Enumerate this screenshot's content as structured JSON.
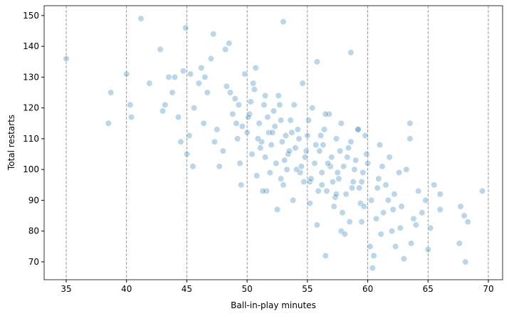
{
  "chart_data": {
    "type": "scatter",
    "x_label": "Ball-in-play minutes",
    "y_label": "Total restarts",
    "color": "#1f77b4",
    "x_grid": true,
    "xlim": [
      33.17,
      71.18
    ],
    "ylim": [
      64.2,
      153.2
    ],
    "xticks": [
      35,
      40,
      45,
      50,
      55,
      60,
      65,
      70
    ],
    "yticks": [
      70,
      80,
      90,
      100,
      110,
      120,
      130,
      140,
      150
    ],
    "x": [
      35,
      38.5,
      38.7,
      40,
      40.3,
      40.4,
      41.2,
      41.9,
      42.8,
      43,
      43.2,
      43.5,
      43.8,
      44,
      44.3,
      44.5,
      44.7,
      44.9,
      45,
      45.2,
      45.3,
      45.5,
      45.6,
      46,
      46.2,
      46.5,
      46.7,
      47,
      47.2,
      47.5,
      47.7,
      48,
      48.2,
      48.5,
      48.8,
      49,
      49.2,
      49.3,
      49.5,
      49.8,
      50,
      50.2,
      50.4,
      50.6,
      50.8,
      51,
      51.2,
      51.4,
      51.6,
      51.8,
      52,
      52.2,
      52.4,
      52.6,
      52.8,
      53,
      53.2,
      53.4,
      53.6,
      53.8,
      54,
      54.2,
      54.4,
      54.6,
      54.8,
      55,
      55.2,
      55.4,
      55.6,
      55.8,
      56,
      56.2,
      56.4,
      56.6,
      56.8,
      57,
      57.2,
      57.4,
      57.6,
      57.8,
      58,
      58.2,
      58.4,
      58.6,
      58.8,
      59,
      59.2,
      59.4,
      59.6,
      59.8,
      60,
      60.2,
      60.4,
      60.5,
      60.8,
      61,
      61.1,
      61.5,
      62,
      62.3,
      62.6,
      63,
      63.5,
      63.5,
      63.6,
      64,
      64.5,
      65,
      65.2,
      65.5,
      66,
      66,
      67.6,
      67.7,
      68,
      68.1,
      68.3,
      69.5,
      59.5,
      59.5,
      59.2,
      58.5,
      57.8,
      56.5,
      56.5,
      55.8,
      53,
      52.5,
      51.3,
      50.7,
      50.3,
      51.5,
      52.3,
      53.3,
      54.3,
      55.3,
      56.3,
      57.3,
      58.3,
      59.3,
      49.6,
      50.9,
      51.9,
      52.9,
      53.9,
      54.9,
      55.9,
      56.9,
      57.9,
      58.9,
      48.3,
      49.1,
      50.1,
      51.1,
      52.1,
      53.1,
      54.1,
      55.1,
      56.1,
      57.1,
      60.3,
      60.9,
      61.3,
      61.8,
      62.2,
      62.8,
      63.2,
      63.8,
      64.2,
      64.8,
      46.4,
      47.3,
      48.6,
      49.4,
      50.5,
      51.7,
      52.7,
      53.7,
      54.7,
      55.7,
      56.7,
      57.7,
      58.7,
      59.7,
      60.7,
      61.7,
      62.7,
      57.4,
      58.1,
      54.5,
      51.5,
      52.8,
      53.5,
      55.2,
      56.2,
      57.5,
      58.6,
      59.9,
      61.2,
      62.1
    ],
    "values": [
      136,
      115,
      125,
      131,
      121,
      117,
      149,
      128,
      139,
      119,
      121,
      130,
      125,
      130,
      117,
      109,
      132,
      146,
      105,
      111,
      131,
      101,
      120,
      128,
      133,
      130,
      125,
      136,
      144,
      113,
      101,
      106,
      139,
      141,
      118,
      123,
      110,
      121,
      95,
      131,
      112,
      118,
      105,
      126,
      98,
      115,
      109,
      121,
      93,
      112,
      108,
      119,
      102,
      124,
      97,
      148,
      111,
      105,
      116,
      90,
      107,
      113,
      99,
      128,
      104,
      111,
      96,
      120,
      102,
      135,
      106,
      99,
      113,
      93,
      118,
      104,
      88,
      110,
      97,
      115,
      101,
      92,
      107,
      138,
      96,
      103,
      113,
      89,
      99,
      111,
      102,
      75,
      68,
      72,
      94,
      108,
      79,
      95,
      80,
      75,
      99,
      71,
      110,
      115,
      76,
      82,
      86,
      74,
      81,
      95,
      87,
      92,
      76,
      88,
      85,
      70,
      83,
      93,
      83,
      96,
      113,
      83,
      80,
      72,
      118,
      82,
      95,
      87,
      93,
      133,
      122,
      104,
      114,
      100,
      110,
      97,
      108,
      91,
      104,
      94,
      114,
      110,
      99,
      109,
      121,
      106,
      93,
      101,
      86,
      100,
      127,
      115,
      117,
      107,
      112,
      103,
      100,
      116,
      111,
      96,
      90,
      97,
      86,
      104,
      92,
      88,
      100,
      84,
      93,
      90,
      115,
      109,
      125,
      102,
      128,
      117,
      121,
      112,
      96,
      108,
      102,
      106,
      94,
      88,
      84,
      90,
      81,
      92,
      79,
      101,
      124,
      116,
      106,
      89,
      95,
      99,
      109,
      105,
      101,
      87
    ]
  }
}
